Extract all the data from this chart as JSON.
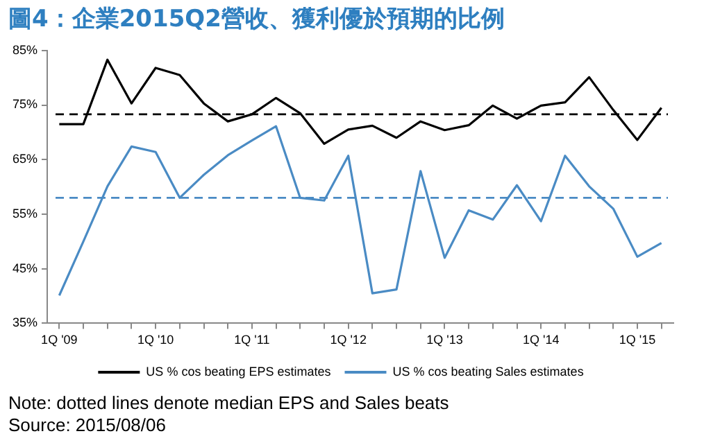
{
  "chart_data": {
    "type": "line",
    "title": "圖4：企業2015Q2營收、獲利優於預期的比例",
    "categories": [
      "1Q '09",
      null,
      null,
      null,
      "1Q '10",
      null,
      null,
      null,
      "1Q '11",
      null,
      null,
      null,
      "1Q '12",
      null,
      null,
      null,
      "1Q '13",
      null,
      null,
      null,
      "1Q '14",
      null,
      null,
      null,
      "1Q '15",
      null
    ],
    "series": [
      {
        "name": "US % cos beating EPS estimates",
        "color": "#000000",
        "values": [
          71.5,
          71.5,
          83.3,
          75.3,
          81.8,
          80.5,
          75.3,
          72,
          73.3,
          76.3,
          73.5,
          67.9,
          70.5,
          71.2,
          69,
          72,
          70.4,
          71.3,
          74.9,
          72.5,
          74.9,
          75.5,
          80.1,
          74.1,
          68.6,
          74.5
        ]
      },
      {
        "name": "US % cos beating Sales estimates",
        "color": "#4a8bc4",
        "values": [
          40.1,
          50,
          60.1,
          67.4,
          66.4,
          58,
          62.2,
          65.8,
          68.5,
          71.1,
          58,
          57.5,
          65.7,
          40.5,
          41.2,
          62.9,
          47,
          55.7,
          54,
          60.3,
          53.7,
          65.7,
          60.1,
          56,
          47.2,
          49.7
        ]
      }
    ],
    "ylim": [
      35,
      85
    ],
    "yticks": [
      {
        "value": 35,
        "label": "35%"
      },
      {
        "value": 45,
        "label": "45%"
      },
      {
        "value": 55,
        "label": "55%"
      },
      {
        "value": 65,
        "label": "65%"
      },
      {
        "value": 75,
        "label": "75%"
      },
      {
        "value": 85,
        "label": "85%"
      }
    ],
    "ref_lines": [
      {
        "axis": "y",
        "value": 73.3,
        "label": null,
        "color": "#000000",
        "line_style": "dashed"
      },
      {
        "axis": "y",
        "value": 58,
        "label": null,
        "color": "#4a8bc4",
        "line_style": "dashed"
      }
    ],
    "grid": false,
    "legend": "bottom",
    "marker": "none",
    "line_style": "solid",
    "annotations": [
      "Note: dotted lines denote median EPS and Sales beats",
      "Source: 2015/08/06"
    ]
  }
}
